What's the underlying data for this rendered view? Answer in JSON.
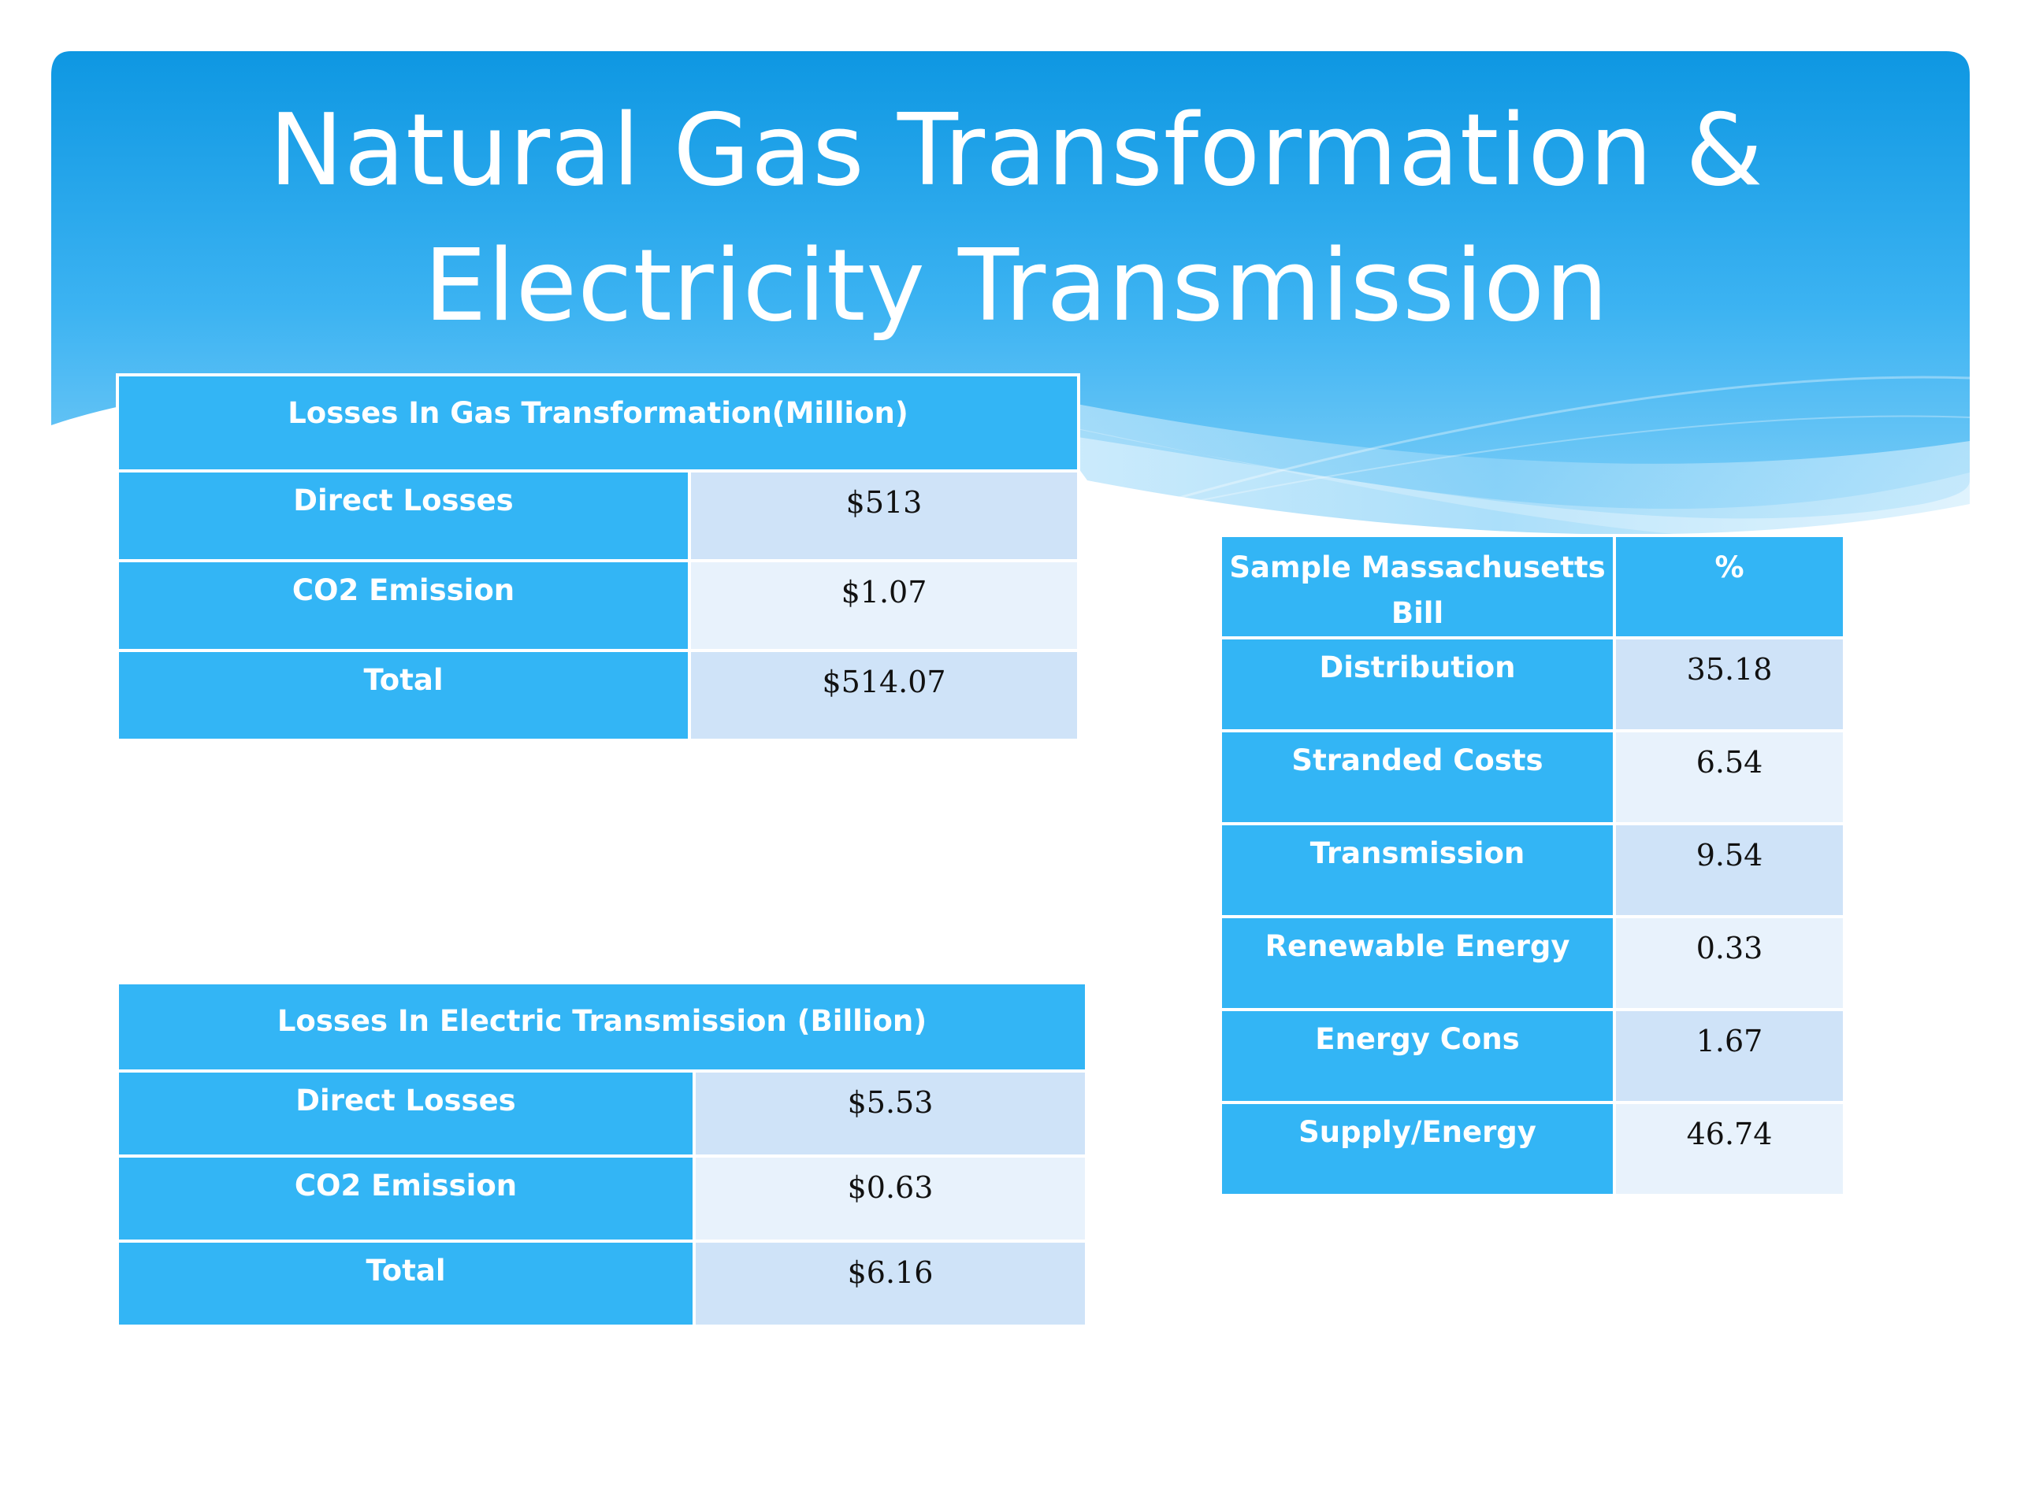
{
  "slide": {
    "title_line1": "Natural Gas Transformation &",
    "title_line2": "Electricity Transmission",
    "colors": {
      "banner": "#1a9fe8",
      "header_cell": "#33b5f5",
      "value_cell_dark": "#cfe3f8",
      "value_cell_light": "#e8f2fc"
    }
  },
  "gas_table": {
    "header": "Losses In Gas  Transformation(Million)",
    "rows": [
      {
        "label": "Direct Losses",
        "value": "$513"
      },
      {
        "label": "CO2 Emission",
        "value": "$1.07"
      },
      {
        "label": "Total",
        "value": "$514.07"
      }
    ]
  },
  "electric_table": {
    "header": "Losses  In Electric Transmission (Billion)",
    "rows": [
      {
        "label": "Direct Losses",
        "value": "$5.53"
      },
      {
        "label": "CO2 Emission",
        "value": "$0.63"
      },
      {
        "label": "Total",
        "value": "$6.16"
      }
    ]
  },
  "bill_table": {
    "header_label": "Sample Massachusetts Bill",
    "header_value": "%",
    "rows": [
      {
        "label": "Distribution",
        "value": "35.18"
      },
      {
        "label": "Stranded Costs",
        "value": "6.54"
      },
      {
        "label": "Transmission",
        "value": "9.54"
      },
      {
        "label": "Renewable Energy",
        "value": "0.33"
      },
      {
        "label": "Energy Cons",
        "value": "1.67"
      },
      {
        "label": "Supply/Energy",
        "value": "46.74"
      }
    ]
  }
}
